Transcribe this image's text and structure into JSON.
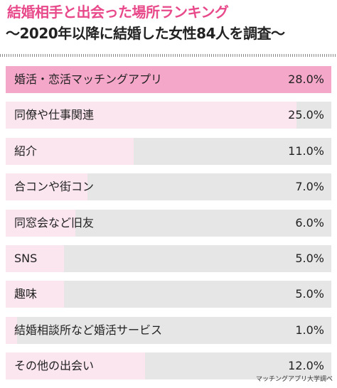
{
  "title": "結婚相手と出会った場所ランキング",
  "subtitle": "〜2020年以降に結婚した女性84人を調査〜",
  "source": "マッチングアプリ大学調べ",
  "colors": {
    "title": "#e8498a",
    "bar_top": "#f4a7c9",
    "bar": "#fbe6ef",
    "track": "#e6e6e6"
  },
  "chart_data": {
    "type": "bar",
    "orientation": "horizontal",
    "title": "結婚相手と出会った場所ランキング",
    "subtitle": "〜2020年以降に結婚した女性84人を調査〜",
    "categories": [
      "婚活・恋活マッチングアプリ",
      "同僚や仕事関連",
      "紹介",
      "合コンや街コン",
      "同窓会など旧友",
      "SNS",
      "趣味",
      "結婚相談所など婚活サービス",
      "その他の出会い"
    ],
    "values": [
      28.0,
      25.0,
      11.0,
      7.0,
      6.0,
      5.0,
      5.0,
      1.0,
      12.0
    ],
    "value_labels": [
      "28.0%",
      "25.0%",
      "11.0%",
      "7.0%",
      "6.0%",
      "5.0%",
      "5.0%",
      "1.0%",
      "12.0%"
    ],
    "unit": "%",
    "xlim": [
      0,
      28
    ],
    "grid": false,
    "legend": "none"
  }
}
